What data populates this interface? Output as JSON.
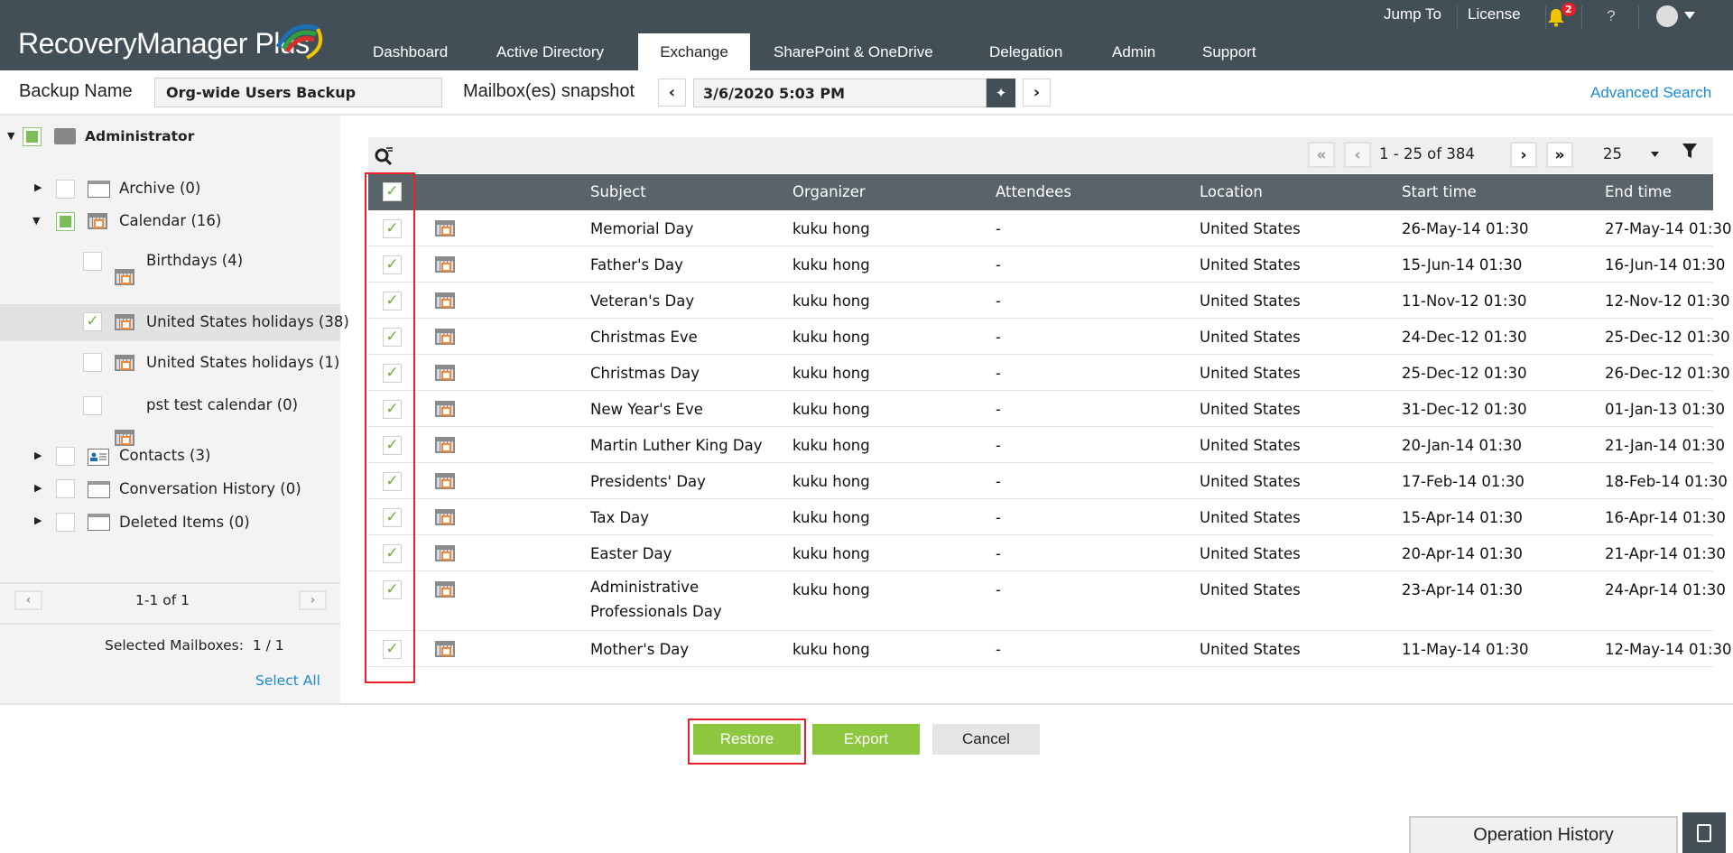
{
  "app": {
    "logo": "RecoveryManager Plus"
  },
  "nav": {
    "tabs": [
      {
        "label": "Dashboard"
      },
      {
        "label": "Active Directory"
      },
      {
        "label": "Exchange",
        "active": true
      },
      {
        "label": "SharePoint & OneDrive"
      },
      {
        "label": "Delegation"
      },
      {
        "label": "Admin"
      },
      {
        "label": "Support"
      }
    ],
    "jump_to": "Jump To",
    "license": "License",
    "notifications": "2",
    "help": "?"
  },
  "toolbar": {
    "backup_label": "Backup Name",
    "backup_value": "Org-wide Users Backup",
    "snapshot_label": "Mailbox(es) snapshot",
    "snapshot_value": "3/6/2020 5:03 PM",
    "advanced_search": "Advanced Search"
  },
  "tree": {
    "root": "Administrator",
    "items": [
      {
        "label": "Archive (0)"
      },
      {
        "label": "Calendar (16)"
      },
      {
        "label": "Birthdays (4)"
      },
      {
        "label": "United States holidays (38)"
      },
      {
        "label": "United States holidays (1)"
      },
      {
        "label": "pst test calendar (0)"
      },
      {
        "label": "Contacts (3)"
      },
      {
        "label": "Conversation History (0)"
      },
      {
        "label": "Deleted Items (0)"
      }
    ],
    "pager": "1-1 of 1",
    "selected": "Selected Mailboxes:  1 / 1",
    "select_all": "Select All"
  },
  "grid": {
    "pager": "1 - 25 of 384",
    "page_size": "25",
    "columns": [
      "Subject",
      "Organizer",
      "Attendees",
      "Location",
      "Start time",
      "End time"
    ],
    "rows": [
      [
        "Memorial Day",
        "kuku hong",
        "-",
        "United States",
        "26-May-14 01:30",
        "27-May-14 01:30"
      ],
      [
        "Father's Day",
        "kuku hong",
        "-",
        "United States",
        "15-Jun-14 01:30",
        "16-Jun-14 01:30"
      ],
      [
        "Veteran's Day",
        "kuku hong",
        "-",
        "United States",
        "11-Nov-12 01:30",
        "12-Nov-12 01:30"
      ],
      [
        "Christmas Eve",
        "kuku hong",
        "-",
        "United States",
        "24-Dec-12 01:30",
        "25-Dec-12 01:30"
      ],
      [
        "Christmas Day",
        "kuku hong",
        "-",
        "United States",
        "25-Dec-12 01:30",
        "26-Dec-12 01:30"
      ],
      [
        "New Year's Eve",
        "kuku hong",
        "-",
        "United States",
        "31-Dec-12 01:30",
        "01-Jan-13 01:30"
      ],
      [
        "Martin Luther King Day",
        "kuku hong",
        "-",
        "United States",
        "20-Jan-14 01:30",
        "21-Jan-14 01:30"
      ],
      [
        "Presidents' Day",
        "kuku hong",
        "-",
        "United States",
        "17-Feb-14 01:30",
        "18-Feb-14 01:30"
      ],
      [
        "Tax Day",
        "kuku hong",
        "-",
        "United States",
        "15-Apr-14 01:30",
        "16-Apr-14 01:30"
      ],
      [
        "Easter Day",
        "kuku hong",
        "-",
        "United States",
        "20-Apr-14 01:30",
        "21-Apr-14 01:30"
      ],
      [
        "Administrative Professionals Day",
        "kuku hong",
        "-",
        "United States",
        "23-Apr-14 01:30",
        "24-Apr-14 01:30"
      ],
      [
        "Mother's Day",
        "kuku hong",
        "-",
        "United States",
        "11-May-14 01:30",
        "12-May-14 01:30"
      ]
    ]
  },
  "actions": {
    "restore": "Restore",
    "export": "Export",
    "cancel": "Cancel"
  },
  "footer": {
    "operation_history": "Operation History"
  },
  "colors": {
    "header": "#434f57",
    "accent_green": "#8dc63f",
    "highlight_red": "#e8202a",
    "link": "#1a8bd0"
  }
}
